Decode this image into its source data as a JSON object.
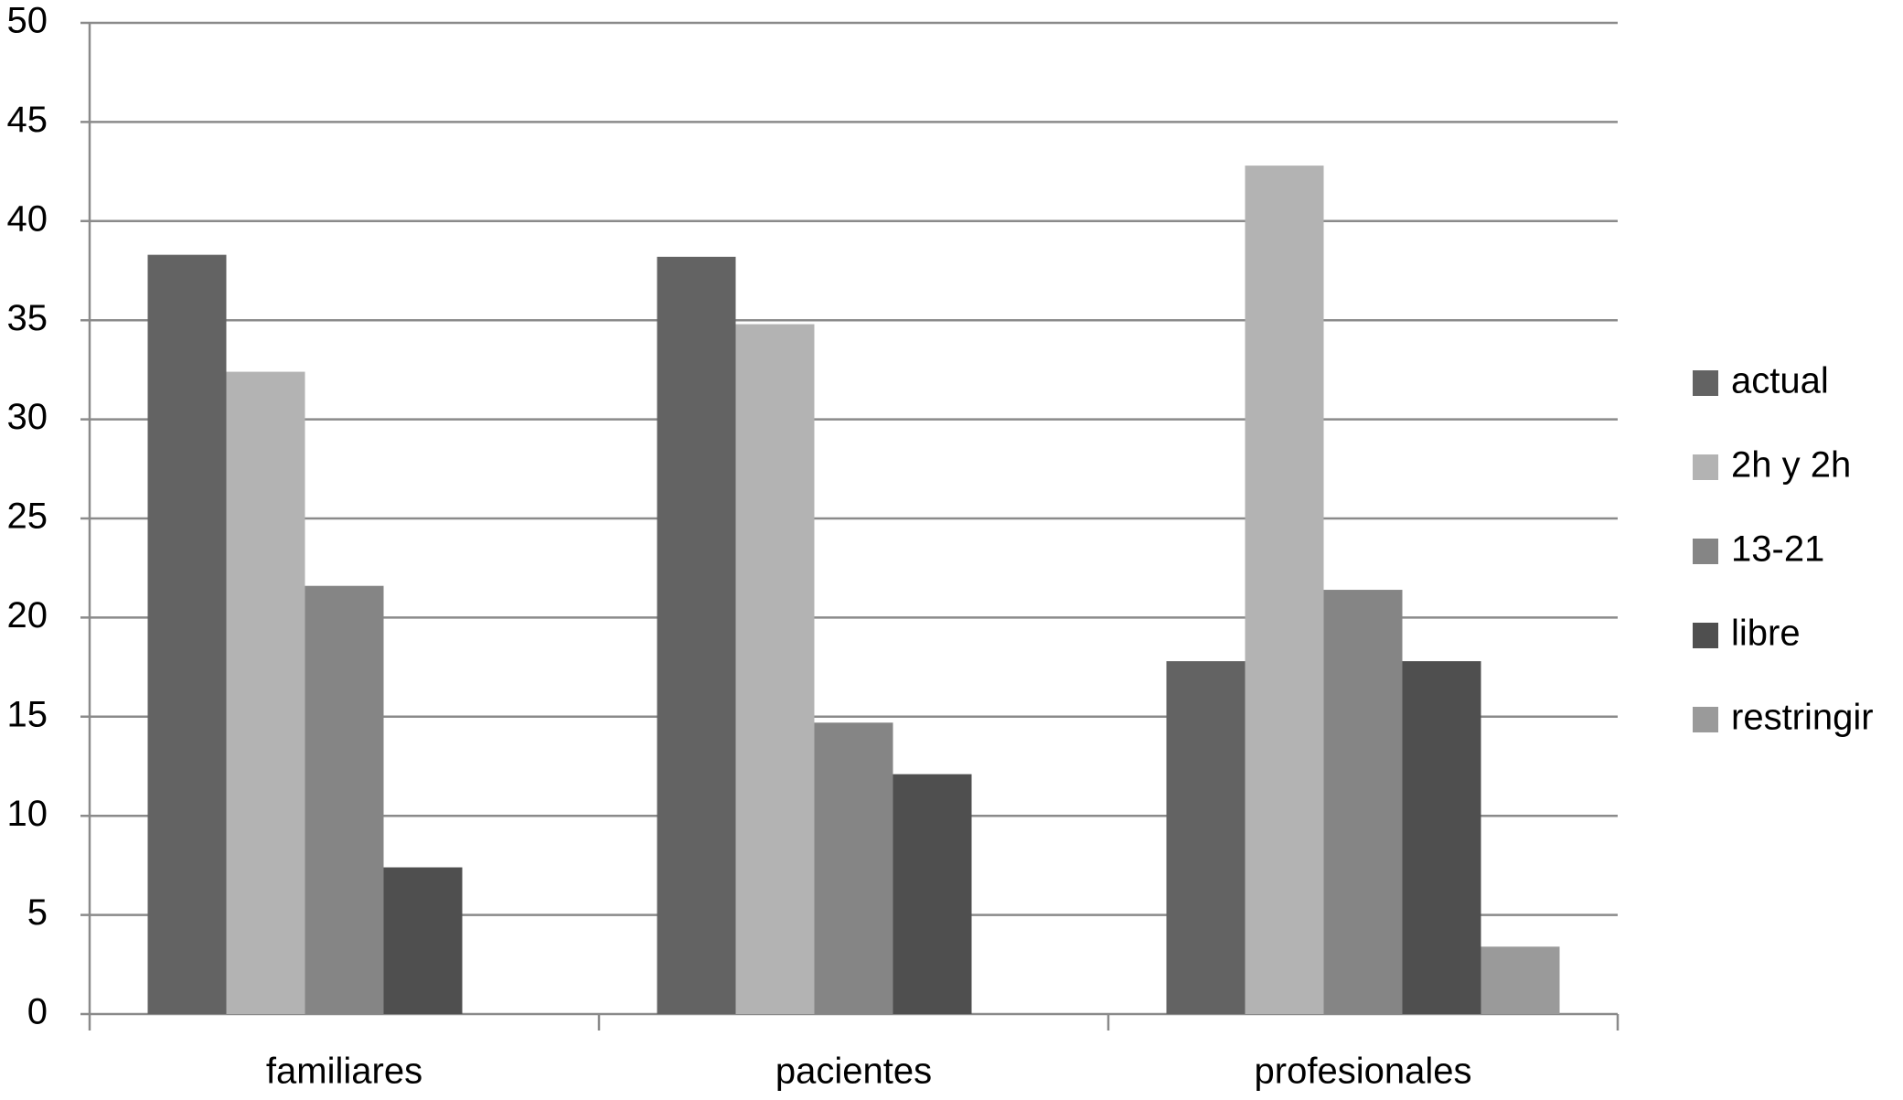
{
  "chart_data": {
    "type": "bar",
    "categories": [
      "familiares",
      "pacientes",
      "profesionales"
    ],
    "series": [
      {
        "name": "actual",
        "color": "#636363",
        "values": [
          38.3,
          38.2,
          17.8
        ]
      },
      {
        "name": "2h y 2h",
        "color": "#b3b3b3",
        "values": [
          32.4,
          34.8,
          42.8
        ]
      },
      {
        "name": "13-21",
        "color": "#858585",
        "values": [
          21.6,
          14.7,
          21.4
        ]
      },
      {
        "name": "libre",
        "color": "#4f4f4f",
        "values": [
          7.4,
          12.1,
          17.8
        ]
      },
      {
        "name": "restringir",
        "color": "#9a9a9a",
        "values": [
          0,
          0,
          3.4
        ]
      }
    ],
    "ylim": [
      0,
      50
    ],
    "yticks": [
      0,
      5,
      10,
      15,
      20,
      25,
      30,
      35,
      40,
      45,
      50
    ],
    "grid": true,
    "legend": "right"
  }
}
